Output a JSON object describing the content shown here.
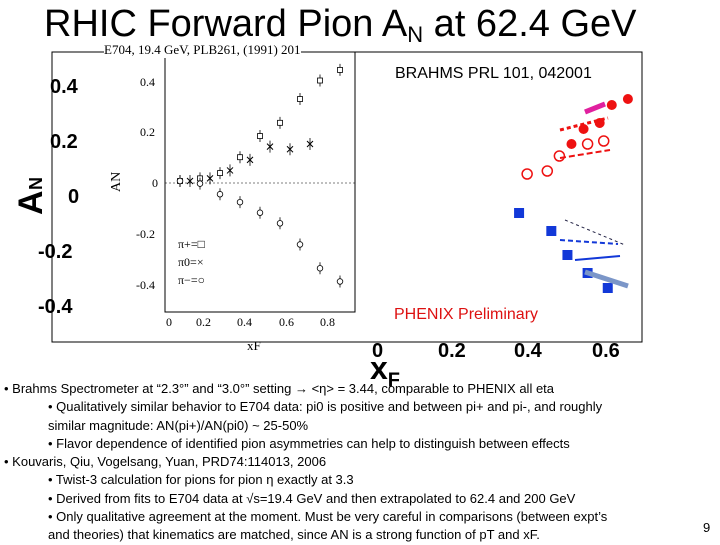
{
  "slide": {
    "title_main": "RHIC Forward Pion A",
    "title_sub": "N",
    "title_tail": " at 62.4 GeV",
    "page_number": "9"
  },
  "chart_data": {
    "type": "scatter",
    "title": "",
    "xlabel": "xF",
    "ylabel": "AN",
    "x_ticks": [
      "0",
      "0.2",
      "0.4",
      "0.6"
    ],
    "y_ticks": [
      "0.4",
      "0.2",
      "0",
      "-0.2",
      "-0.4"
    ],
    "xlim": [
      0,
      0.65
    ],
    "ylim": [
      -0.45,
      0.45
    ],
    "annotations": [
      "BRAHMS PRL 101, 042001",
      "PHENIX Preliminary"
    ],
    "series": [
      {
        "name": "",
        "values": [
          [
            0.48,
            0.17
          ],
          [
            0.51,
            0.22
          ],
          [
            0.55,
            0.24
          ],
          [
            0.58,
            0.3
          ],
          [
            0.62,
            0.32
          ]
        ]
      },
      {
        "name": "",
        "values": [
          [
            0.37,
            0.07
          ],
          [
            0.42,
            0.08
          ],
          [
            0.45,
            0.13
          ],
          [
            0.52,
            0.17
          ],
          [
            0.56,
            0.18
          ]
        ]
      },
      {
        "name": "",
        "values": [
          [
            0.35,
            -0.06
          ],
          [
            0.43,
            -0.12
          ],
          [
            0.47,
            -0.2
          ],
          [
            0.52,
            -0.26
          ],
          [
            0.57,
            -0.31
          ]
        ]
      }
    ],
    "inset": {
      "caption": "E704, 19.4 GeV, PLB261, (1991) 201",
      "ylabel": "AN",
      "xlabel": "xF",
      "x_ticks": [
        "0",
        "0.2",
        "0.4",
        "0.6",
        "0.8"
      ],
      "y_ticks": [
        "0.4",
        "0.2",
        "0",
        "-0.2",
        "-0.4"
      ],
      "legend": [
        "π+=□",
        "π0=×",
        "π−=○"
      ],
      "xlim": [
        0,
        0.9
      ],
      "ylim": [
        -0.45,
        0.45
      ],
      "series": [
        {
          "name": "π+",
          "values": [
            [
              0.05,
              0.0
            ],
            [
              0.15,
              0.01
            ],
            [
              0.25,
              0.03
            ],
            [
              0.35,
              0.09
            ],
            [
              0.45,
              0.17
            ],
            [
              0.55,
              0.22
            ],
            [
              0.65,
              0.31
            ],
            [
              0.75,
              0.38
            ],
            [
              0.85,
              0.42
            ]
          ]
        },
        {
          "name": "π0",
          "values": [
            [
              0.1,
              0.0
            ],
            [
              0.2,
              0.01
            ],
            [
              0.3,
              0.04
            ],
            [
              0.4,
              0.08
            ],
            [
              0.5,
              0.13
            ],
            [
              0.6,
              0.12
            ],
            [
              0.7,
              0.14
            ]
          ]
        },
        {
          "name": "π−",
          "values": [
            [
              0.05,
              0.0
            ],
            [
              0.15,
              -0.01
            ],
            [
              0.25,
              -0.05
            ],
            [
              0.35,
              -0.08
            ],
            [
              0.45,
              -0.12
            ],
            [
              0.55,
              -0.16
            ],
            [
              0.65,
              -0.24
            ],
            [
              0.75,
              -0.33
            ],
            [
              0.85,
              -0.38
            ]
          ]
        }
      ]
    }
  },
  "notes": [
    {
      "indent": false,
      "text": "• Brahms Spectrometer at “2.3°” and “3.0°” setting → <η> = 3.44, comparable to PHENIX all eta"
    },
    {
      "indent": true,
      "text": "• Qualitatively similar behavior to E704 data: pi0 is positive and between pi+ and pi-, and roughly"
    },
    {
      "indent": true,
      "text": "similar magnitude: AN(pi+)/AN(pi0) ~ 25-50%"
    },
    {
      "indent": true,
      "text": "• Flavor dependence of identified pion asymmetries can help to distinguish between effects"
    },
    {
      "indent": false,
      "text": "• Kouvaris, Qiu, Vogelsang, Yuan, PRD74:114013, 2006"
    },
    {
      "indent": true,
      "text": "• Twist-3 calculation for pions for pion η exactly at 3.3"
    },
    {
      "indent": true,
      "text": "• Derived from fits to E704 data at √s=19.4 GeV and then extrapolated to 62.4 and 200 GeV"
    },
    {
      "indent": true,
      "text": "• Only qualitative agreement at the moment.  Must be very careful in comparisons (between expt’s"
    },
    {
      "indent": false,
      "text": "and theories) that kinematics are matched, since AN is a strong function of pT and xF."
    }
  ]
}
